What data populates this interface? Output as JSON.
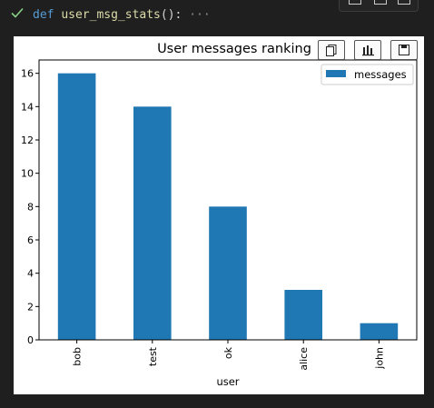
{
  "cell": {
    "code_keyword": "def",
    "code_function": "user_msg_stats",
    "code_rest": "():",
    "collapsed_marker": "···"
  },
  "colors": {
    "bar": "#1f77b4",
    "check": "#89d185"
  },
  "chart_data": {
    "type": "bar",
    "title": "User messages ranking",
    "xlabel": "user",
    "ylabel": "",
    "categories": [
      "bob",
      "test",
      "ok",
      "alice",
      "john"
    ],
    "series": [
      {
        "name": "messages",
        "values": [
          16,
          14,
          8,
          3,
          1
        ]
      }
    ],
    "ylim": [
      0,
      16.8
    ],
    "yticks": [
      0,
      2,
      4,
      6,
      8,
      10,
      12,
      14,
      16
    ],
    "legend": "top-right",
    "grid": false
  }
}
